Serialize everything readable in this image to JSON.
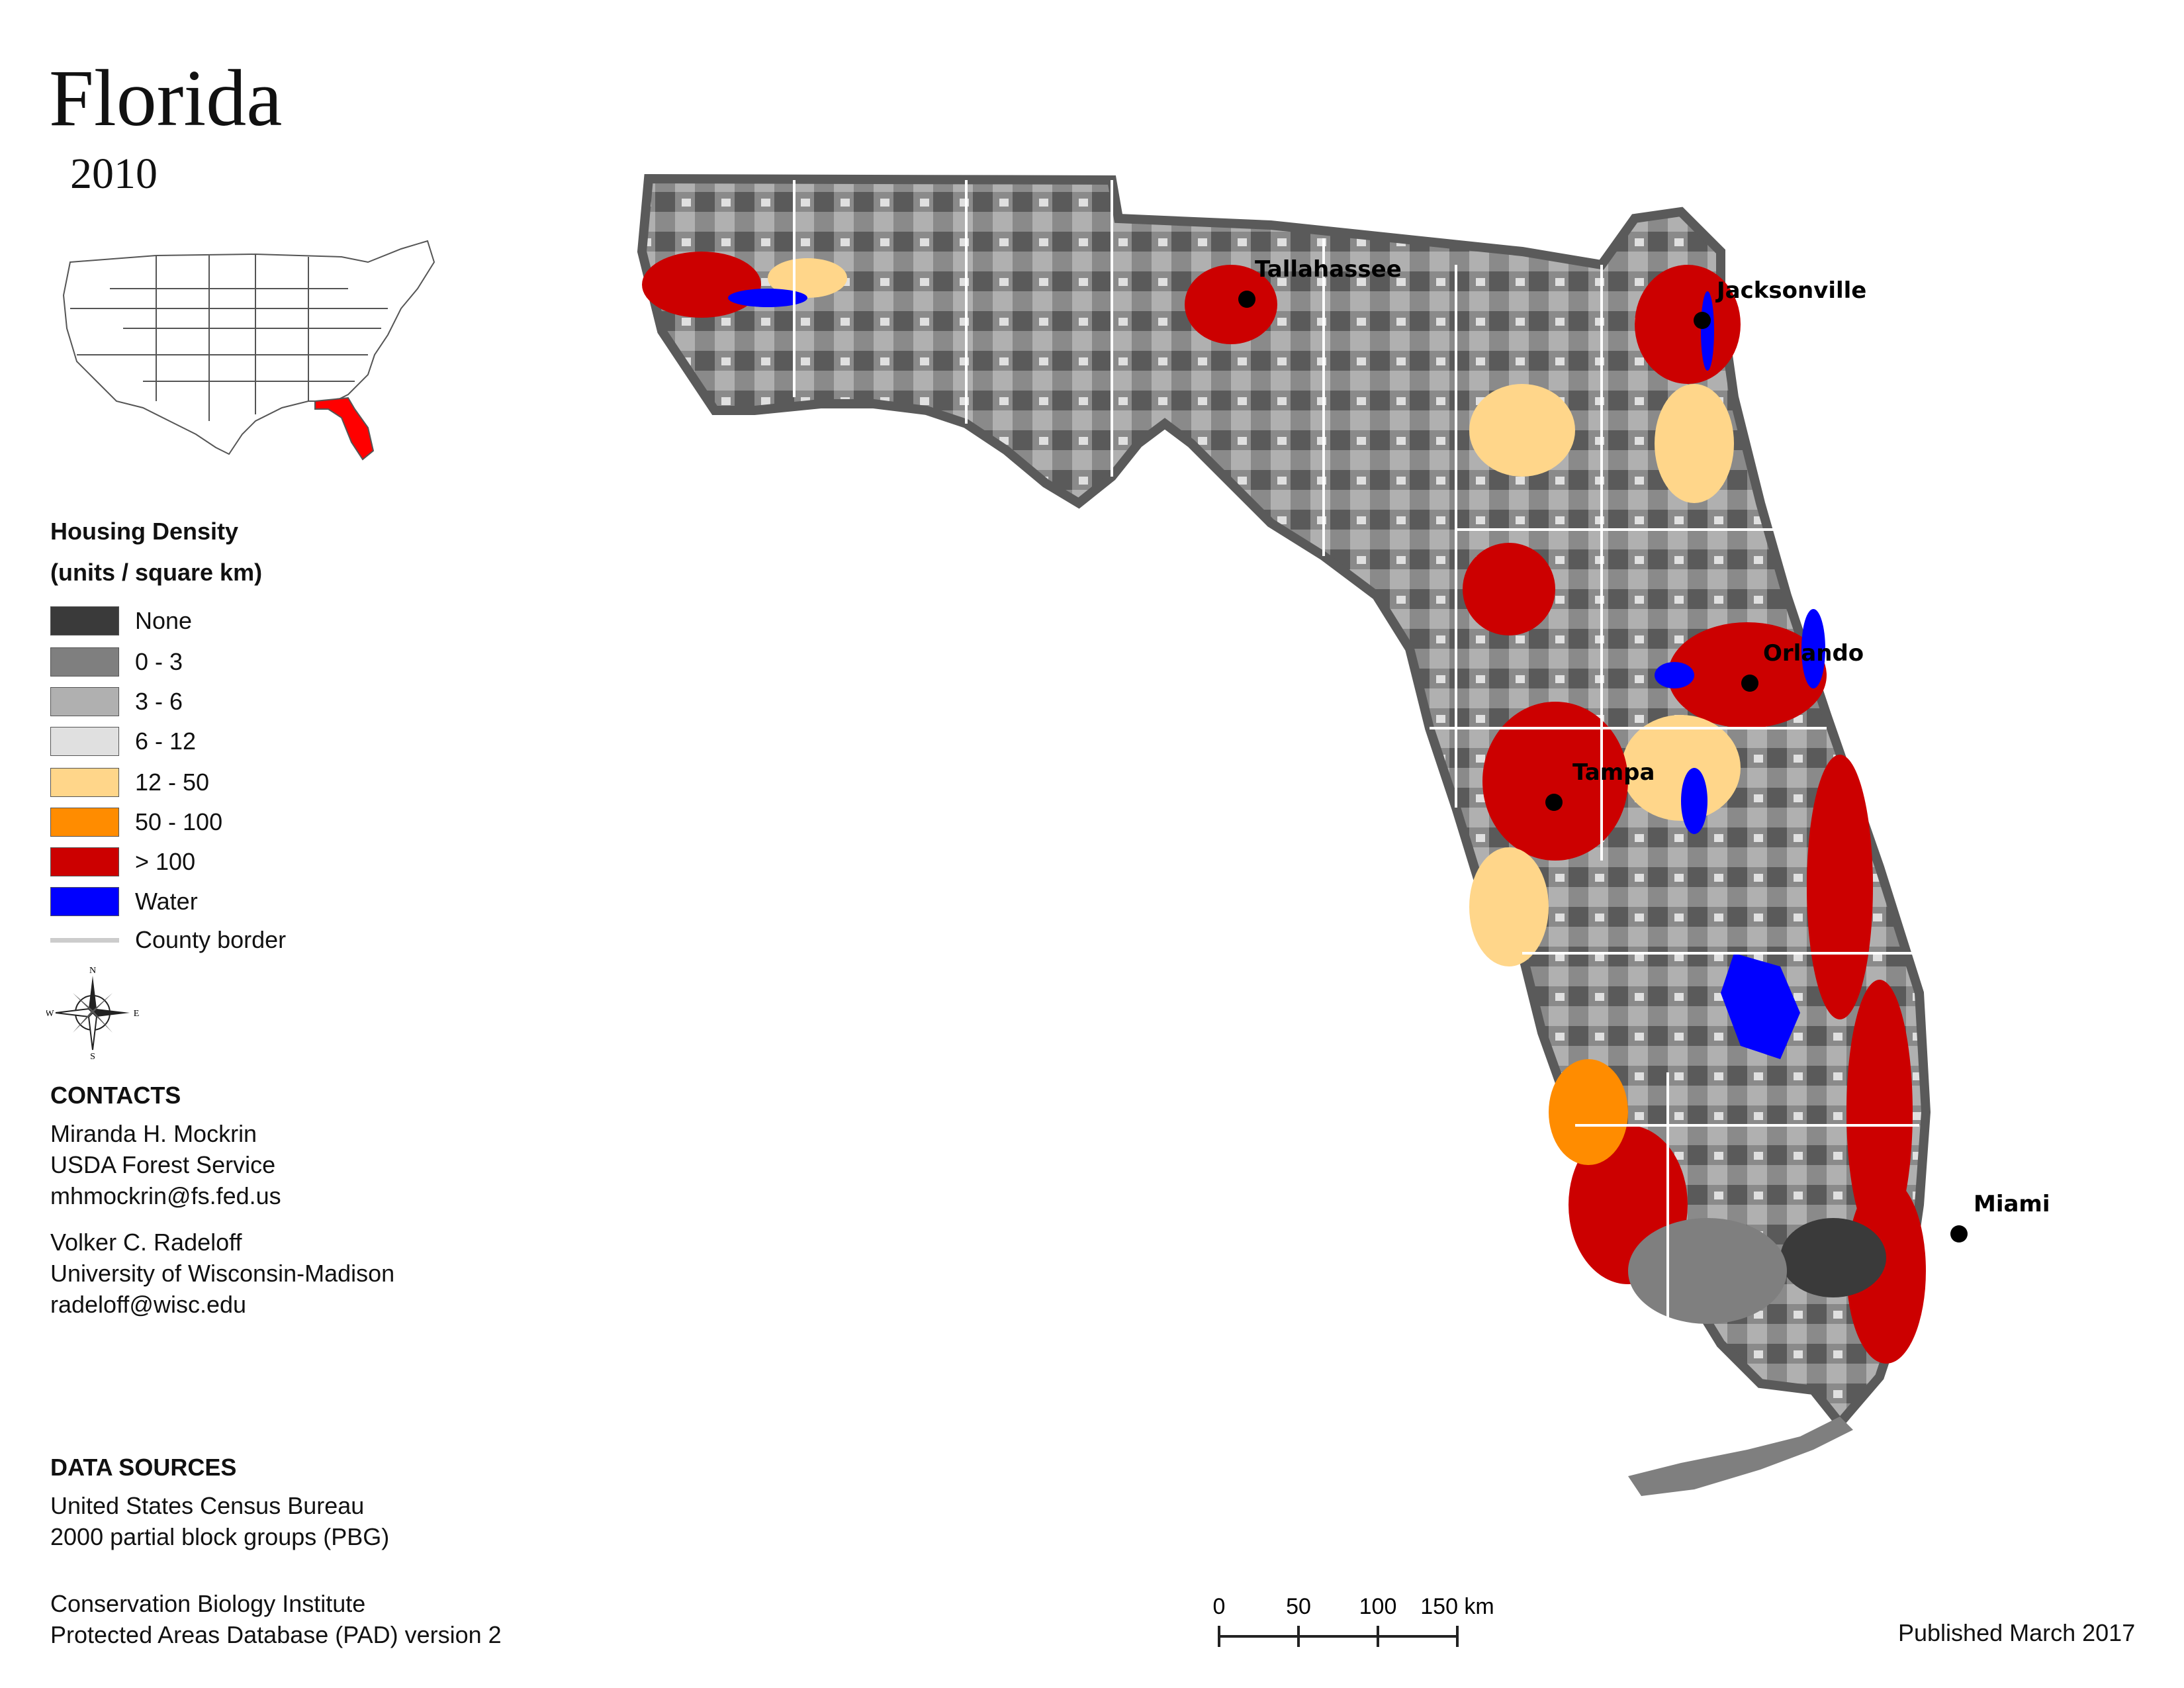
{
  "title": "Florida",
  "year": "2010",
  "legend": {
    "title_line1": "Housing Density",
    "title_line2": "(units / square km)",
    "items": [
      {
        "label": "None",
        "color": "#3a3a3a"
      },
      {
        "label": "0 - 3",
        "color": "#7f7f7f"
      },
      {
        "label": "3 - 6",
        "color": "#b0b0b0"
      },
      {
        "label": "6 - 12",
        "color": "#e0e0e0"
      },
      {
        "label": "12 - 50",
        "color": "#ffd68a"
      },
      {
        "label": "50 - 100",
        "color": "#ff8c00"
      },
      {
        "label": "> 100",
        "color": "#cc0000"
      },
      {
        "label": "Water",
        "color": "#0000ff"
      }
    ],
    "county_border_label": "County border"
  },
  "compass": {
    "n": "N",
    "s": "S",
    "e": "E",
    "w": "W"
  },
  "contacts": {
    "heading": "CONTACTS",
    "person1": {
      "name": "Miranda H. Mockrin",
      "org": "USDA Forest Service",
      "email": "mhmockrin@fs.fed.us"
    },
    "person2": {
      "name": "Volker C. Radeloff",
      "org": "University of Wisconsin-Madison",
      "email": "radeloff@wisc.edu"
    }
  },
  "data_sources": {
    "heading": "DATA SOURCES",
    "source1_line1": "United States Census Bureau",
    "source1_line2": "2000 partial block groups (PBG)",
    "source2_line1": "Conservation Biology Institute",
    "source2_line2": "Protected Areas Database (PAD) version 2"
  },
  "scale": {
    "ticks": [
      "0",
      "50",
      "100",
      "150 km"
    ]
  },
  "published": "Published March 2017",
  "cities": [
    "Tallahassee",
    "Jacksonville",
    "Orlando",
    "Tampa",
    "Miami"
  ]
}
